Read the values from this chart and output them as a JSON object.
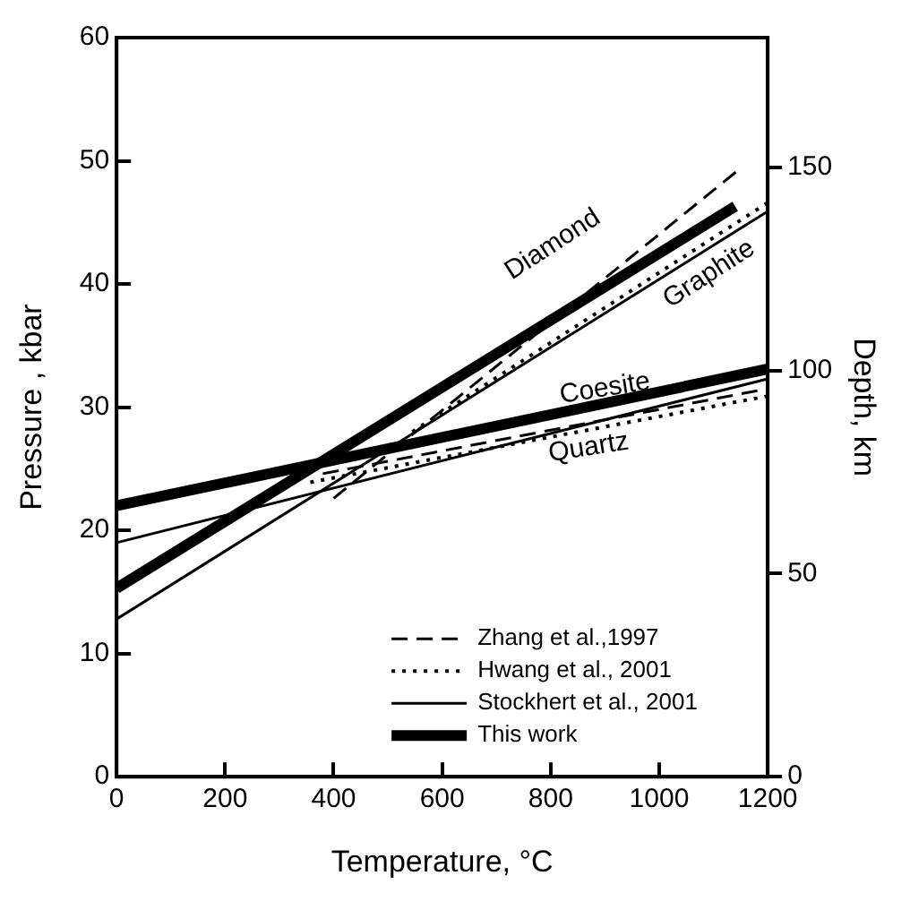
{
  "chart_data": {
    "type": "line",
    "xlabel": "Temperature, °C",
    "ylabel": "Pressure , kbar",
    "y2label": "Depth, km",
    "xlim": [
      0,
      1200
    ],
    "xticks": [
      0,
      200,
      400,
      600,
      800,
      1000,
      1200
    ],
    "ylim": [
      0,
      60
    ],
    "yticks": [
      0,
      10,
      20,
      30,
      40,
      50,
      60
    ],
    "y2lim": [
      0,
      182
    ],
    "y2ticks": [
      0,
      50,
      100,
      150
    ],
    "grid": false,
    "legend": "bottom right",
    "marker": "none",
    "series": [
      {
        "name": "Zhang et al.,1997",
        "color": "#000000",
        "line_style": "dashed",
        "x": [
          400,
          1150
        ],
        "values": [
          22.6,
          49.4
        ]
      },
      {
        "name": "Hwang et al., 2001",
        "color": "#000000",
        "line_style": "dotted",
        "x": [
          545,
          1200
        ],
        "values": [
          28,
          46.6
        ]
      },
      {
        "name": "Stockhert et al., 2001",
        "color": "#000000",
        "line_style": "solid",
        "x": [
          0,
          1200
        ],
        "values": [
          12.8,
          45.9
        ]
      },
      {
        "name": "This work",
        "color": "#000000",
        "line_style": "solid",
        "x": [
          0,
          1140
        ],
        "values": [
          15.3,
          46.3
        ]
      },
      {
        "color": "#000000",
        "line_style": "dashed",
        "x": [
          380,
          1200
        ],
        "values": [
          24.6,
          31.5
        ]
      },
      {
        "color": "#000000",
        "line_style": "dotted",
        "x": [
          357,
          1200
        ],
        "values": [
          23.9,
          30.9
        ]
      },
      {
        "color": "#000000",
        "line_style": "solid",
        "x": [
          0,
          1200
        ],
        "values": [
          19,
          32.3
        ]
      },
      {
        "color": "#000000",
        "line_style": "solid",
        "x": [
          0,
          1200
        ],
        "values": [
          22,
          33.1
        ]
      }
    ],
    "annotations": [
      "Diamond",
      "Graphite",
      "Coesite",
      "Quartz"
    ]
  }
}
